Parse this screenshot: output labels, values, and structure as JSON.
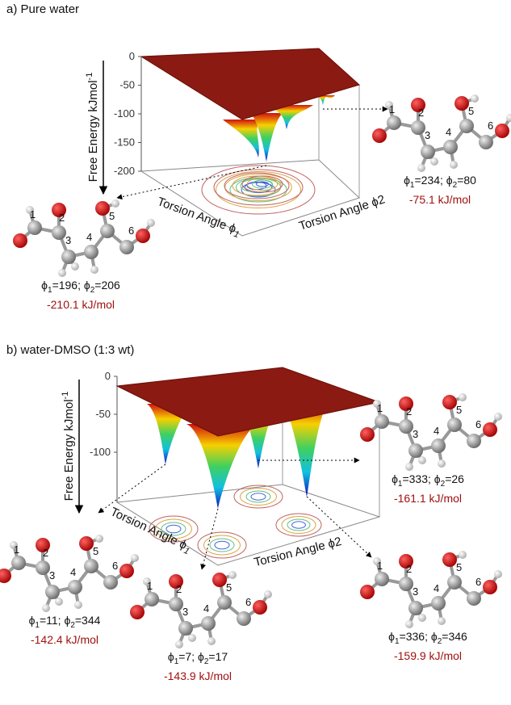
{
  "panels": [
    {
      "label": "a) Pure water",
      "z_axis_label": [
        "Free Energy kJmol",
        "-1"
      ],
      "z_ticks": [
        0,
        -50,
        -100,
        -150,
        -200
      ],
      "x_axis_label": [
        "Torsion Angle ϕ",
        "1"
      ],
      "y_axis_label": "Torsion Angle ϕ2",
      "conformers": [
        {
          "atom_labels": [
            "1",
            "2",
            "3",
            "4",
            "5",
            "6"
          ],
          "angles": [
            "ϕ",
            "1",
            "=234; ϕ",
            "2",
            "=80"
          ],
          "energy": "-75.1 kJ/mol"
        },
        {
          "atom_labels": [
            "1",
            "2",
            "3",
            "4",
            "5",
            "6"
          ],
          "angles": [
            "ϕ",
            "1",
            "=196; ϕ",
            "2",
            "=206"
          ],
          "energy": "-210.1 kJ/mol"
        }
      ]
    },
    {
      "label": "b) water-DMSO (1:3 wt)",
      "z_axis_label": [
        "Free Energy kJmol",
        "-1"
      ],
      "z_ticks": [
        0,
        -50,
        -100
      ],
      "x_axis_label": [
        "Torsion Angle ϕ",
        "1"
      ],
      "y_axis_label": "Torsion Angle ϕ2",
      "conformers": [
        {
          "atom_labels": [
            "1",
            "2",
            "3",
            "4",
            "5",
            "6"
          ],
          "angles": [
            "ϕ",
            "1",
            "=333; ϕ",
            "2",
            "=26"
          ],
          "energy": "-161.1 kJ/mol"
        },
        {
          "atom_labels": [
            "1",
            "2",
            "3",
            "4",
            "5",
            "6"
          ],
          "angles": [
            "ϕ",
            "1",
            "=336; ϕ",
            "2",
            "=346"
          ],
          "energy": "-159.9 kJ/mol"
        },
        {
          "atom_labels": [
            "1",
            "2",
            "3",
            "4",
            "5",
            "6"
          ],
          "angles": [
            "ϕ",
            "1",
            "=11; ϕ",
            "2",
            "=344"
          ],
          "energy": "-142.4 kJ/mol"
        },
        {
          "atom_labels": [
            "1",
            "2",
            "3",
            "4",
            "5",
            "6"
          ],
          "angles": [
            "ϕ",
            "1",
            "=7; ϕ",
            "2",
            "=17"
          ],
          "energy": "-143.9 kJ/mol"
        }
      ]
    }
  ]
}
